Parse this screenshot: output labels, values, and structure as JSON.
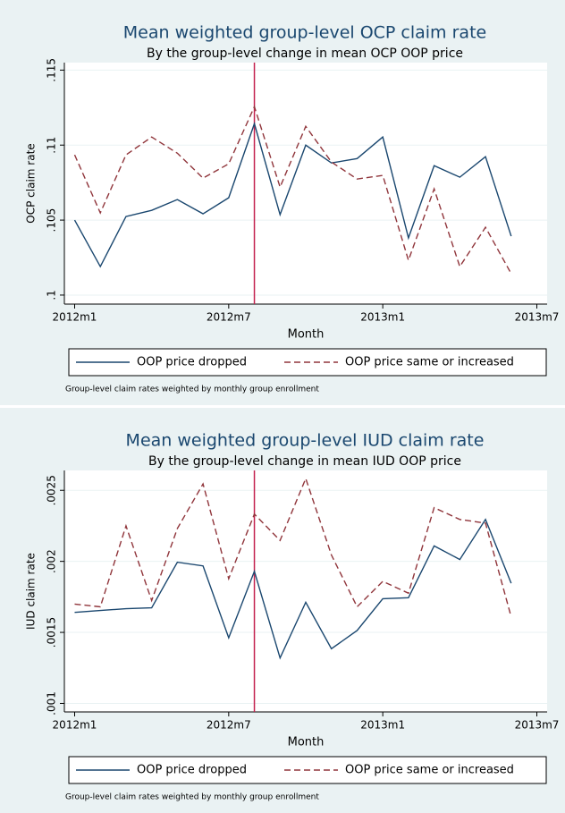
{
  "chart_data": [
    {
      "type": "line",
      "title": "Mean weighted group-level OCP claim rate",
      "subtitle": "By the group-level change in mean OCP OOP price",
      "x_label": "Month",
      "y_label": "OCP claim rate",
      "x": [
        624,
        625,
        626,
        627,
        628,
        629,
        630,
        631,
        632,
        633,
        634,
        635,
        636,
        637,
        638,
        639,
        640,
        641
      ],
      "xlim": [
        623.6,
        642.4
      ],
      "xticks": [
        {
          "value": 624,
          "label": "2012m1"
        },
        {
          "value": 630,
          "label": "2012m7"
        },
        {
          "value": 636,
          "label": "2013m1"
        },
        {
          "value": 642,
          "label": "2013m7"
        }
      ],
      "ylim": [
        0.0994,
        0.1155
      ],
      "yticks": [
        {
          "value": 0.1,
          "label": ".1"
        },
        {
          "value": 0.105,
          "label": ".105"
        },
        {
          "value": 0.11,
          "label": ".11"
        },
        {
          "value": 0.115,
          "label": ".115"
        }
      ],
      "grid": true,
      "xline": 631,
      "xline_color": "#c4224f",
      "series": [
        {
          "name": "OOP price dropped",
          "color": "#1a476f",
          "dash": "solid",
          "values": [
            0.105,
            0.1019,
            0.10524,
            0.10565,
            0.10637,
            0.10542,
            0.10649,
            0.11143,
            0.10536,
            0.11,
            0.10881,
            0.1091,
            0.11054,
            0.10381,
            0.10863,
            0.10786,
            0.10923,
            0.10393
          ]
        },
        {
          "name": "OOP price same or increased",
          "color": "#90353b",
          "dash": "dashed",
          "values": [
            0.10935,
            0.10548,
            0.10935,
            0.11054,
            0.10946,
            0.1078,
            0.10875,
            0.11256,
            0.1072,
            0.11125,
            0.10887,
            0.10774,
            0.10798,
            0.10232,
            0.10708,
            0.1019,
            0.10452,
            0.10143
          ]
        }
      ],
      "note": "Group-level claim rates weighted by monthly group enrollment"
    },
    {
      "type": "line",
      "title": "Mean weighted group-level IUD claim rate",
      "subtitle": "By the group-level change in mean IUD OOP price",
      "x_label": "Month",
      "y_label": "IUD claim rate",
      "x": [
        624,
        625,
        626,
        627,
        628,
        629,
        630,
        631,
        632,
        633,
        634,
        635,
        636,
        637,
        638,
        639,
        640,
        641
      ],
      "xlim": [
        623.6,
        642.4
      ],
      "xticks": [
        {
          "value": 624,
          "label": "2012m1"
        },
        {
          "value": 630,
          "label": "2012m7"
        },
        {
          "value": 636,
          "label": "2013m1"
        },
        {
          "value": 642,
          "label": "2013m7"
        }
      ],
      "ylim": [
        0.00094,
        0.00264
      ],
      "yticks": [
        {
          "value": 0.001,
          "label": ".001"
        },
        {
          "value": 0.0015,
          "label": ".0015"
        },
        {
          "value": 0.002,
          "label": ".002"
        },
        {
          "value": 0.0025,
          "label": ".0025"
        }
      ],
      "grid": true,
      "xline": 631,
      "xline_color": "#c4224f",
      "series": [
        {
          "name": "OOP price dropped",
          "color": "#1a476f",
          "dash": "solid",
          "values": [
            0.001641,
            0.001654,
            0.001667,
            0.001673,
            0.001994,
            0.001968,
            0.001462,
            0.00193,
            0.00132,
            0.001712,
            0.001385,
            0.001513,
            0.001737,
            0.001744,
            0.002109,
            0.002013,
            0.002295,
            0.001846
          ]
        },
        {
          "name": "OOP price same or increased",
          "color": "#90353b",
          "dash": "dashed",
          "values": [
            0.001699,
            0.00168,
            0.00225,
            0.001724,
            0.002231,
            0.002545,
            0.001878,
            0.002333,
            0.002147,
            0.002583,
            0.002045,
            0.00168,
            0.001859,
            0.001776,
            0.002378,
            0.002295,
            0.002269,
            0.001609
          ]
        }
      ],
      "note": "Group-level claim rates weighted by monthly group enrollment"
    }
  ]
}
